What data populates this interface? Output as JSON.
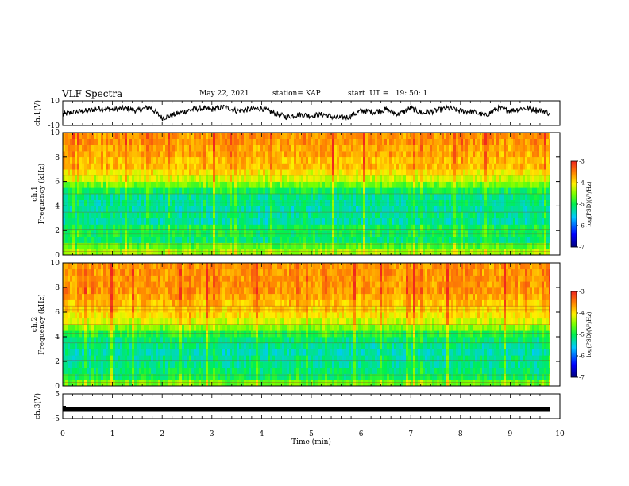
{
  "header": {
    "title": "VLF Spectra",
    "date": "May 22, 2021",
    "station": "station= KAP",
    "start": "start  UT =   19: 50: 1"
  },
  "chart_data": [
    {
      "type": "line",
      "panel": "ch1-waveform",
      "ylabel": "ch.1(V)",
      "ylim": [
        -10,
        10
      ],
      "yticklabels": [
        "10",
        "-10"
      ],
      "xlim": [
        0,
        10
      ],
      "series": [
        {
          "values_note": "noisy broadband waveform",
          "color": "#000000",
          "x": [
            0,
            0.25,
            0.5,
            0.75,
            1,
            1.25,
            1.5,
            1.75,
            2,
            2.25,
            2.5,
            2.75,
            3,
            3.25,
            3.5,
            3.75,
            4,
            4.25,
            4.5,
            4.75,
            5,
            5.25,
            5.5,
            5.75,
            6,
            6.25,
            6.5,
            6.75,
            7,
            7.25,
            7.5,
            7.75,
            8,
            8.25,
            8.5,
            8.75,
            9,
            9.25,
            9.5,
            9.75,
            9.8
          ],
          "y": [
            -1,
            1,
            2,
            4,
            3,
            4,
            2,
            5,
            -4,
            -1,
            2,
            4,
            3,
            5,
            2,
            3,
            4,
            0,
            -3,
            -1,
            -2,
            -1,
            -4,
            -3,
            2,
            1,
            3,
            -1,
            4,
            0,
            2,
            4,
            2,
            1,
            -2,
            4,
            2,
            4,
            3,
            1,
            -2
          ]
        }
      ]
    },
    {
      "type": "heatmap",
      "panel": "ch1-spectrogram",
      "ylabel": "ch.1 Frequency  (kHz)",
      "ylim": [
        0,
        10
      ],
      "yticklabels": [
        "0",
        "2",
        "4",
        "6",
        "8",
        "10"
      ],
      "xlim": [
        0,
        10
      ],
      "data_extent_min": 9.8,
      "colorbar": {
        "label": "log(PSD)(V²/Hz)",
        "range": [
          -7,
          -3
        ],
        "ticklabels": [
          "-3",
          "-4",
          "-5",
          "-6",
          "-7"
        ]
      },
      "freq_bands_kHz": [
        0,
        0.5,
        1,
        1.5,
        2,
        2.5,
        3,
        3.5,
        4,
        4.5,
        5,
        5.5,
        6,
        6.5,
        7,
        7.5,
        8,
        8.5,
        9,
        9.5
      ],
      "log_psd": [
        -4.4,
        -4.7,
        -5.1,
        -5.0,
        -5.0,
        -5.3,
        -5.2,
        -5.3,
        -5.2,
        -5.2,
        -5.0,
        -4.6,
        -4.2,
        -4.0,
        -3.8,
        -3.8,
        -3.7,
        -3.7,
        -3.6,
        -3.6
      ]
    },
    {
      "type": "heatmap",
      "panel": "ch2-spectrogram",
      "ylabel": "ch.2 Frequency  (kHz)",
      "ylim": [
        0,
        10
      ],
      "yticklabels": [
        "0",
        "2",
        "4",
        "6",
        "8",
        "10"
      ],
      "xlim": [
        0,
        10
      ],
      "data_extent_min": 9.8,
      "colorbar": {
        "label": "log(PSD)(V²/Hz)",
        "range": [
          -7,
          -3
        ],
        "ticklabels": [
          "-3",
          "-4",
          "-5",
          "-6",
          "-7"
        ]
      },
      "freq_bands_kHz": [
        0,
        0.5,
        1,
        1.5,
        2,
        2.5,
        3,
        3.5,
        4,
        4.5,
        5,
        5.5,
        6,
        6.5,
        7,
        7.5,
        8,
        8.5,
        9,
        9.5
      ],
      "log_psd": [
        -4.6,
        -5.0,
        -5.1,
        -5.2,
        -5.2,
        -5.3,
        -5.2,
        -5.1,
        -4.9,
        -4.5,
        -4.2,
        -4.0,
        -3.9,
        -3.8,
        -3.7,
        -3.6,
        -3.6,
        -3.6,
        -3.6,
        -3.6
      ]
    },
    {
      "type": "line",
      "panel": "ch3-waveform",
      "ylabel": "ch.3(V)",
      "ylim": [
        -5,
        5
      ],
      "yticklabels": [
        "5",
        "-5"
      ],
      "xlim": [
        0,
        10
      ],
      "xlabel": "Time  (min)",
      "xticklabels": [
        "0",
        "1",
        "2",
        "3",
        "4",
        "5",
        "6",
        "7",
        "8",
        "9",
        "10"
      ],
      "series": [
        {
          "color": "#000000",
          "x": [
            0,
            9.8
          ],
          "y": [
            -1.3,
            -1.3
          ]
        }
      ]
    }
  ]
}
